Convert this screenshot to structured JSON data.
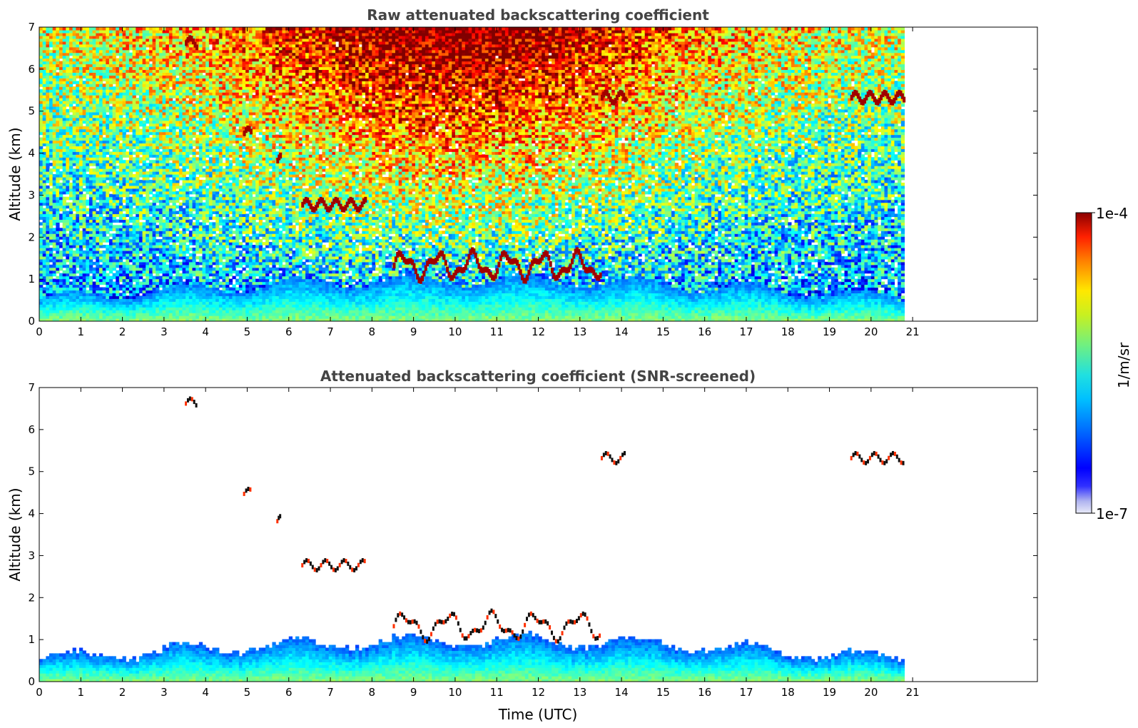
{
  "chart_data": [
    {
      "type": "heatmap",
      "title": "Raw attenuated backscattering coefficient",
      "xlabel": "",
      "ylabel": "Altitude (km)",
      "xlim": [
        0,
        24
      ],
      "ylim": [
        0,
        7
      ],
      "x_ticks": [
        "0",
        "1",
        "2",
        "3",
        "4",
        "5",
        "6",
        "7",
        "8",
        "9",
        "10",
        "11",
        "12",
        "13",
        "14",
        "15",
        "16",
        "17",
        "18",
        "19",
        "20",
        "21"
      ],
      "y_ticks": [
        "0",
        "1",
        "2",
        "3",
        "4",
        "5",
        "6",
        "7"
      ],
      "data_extent_hours": [
        0,
        20.8
      ],
      "grid": false,
      "features": [
        {
          "kind": "cloud",
          "t_start": 6.3,
          "t_end": 7.85,
          "alt": 2.75
        },
        {
          "kind": "cloud",
          "t_start": 13.5,
          "t_end": 14.1,
          "alt": 5.3
        },
        {
          "kind": "cloud",
          "t_start": 3.5,
          "t_end": 3.8,
          "alt": 6.6
        },
        {
          "kind": "cloud",
          "t_start": 5.7,
          "t_end": 5.8,
          "alt": 3.8
        },
        {
          "kind": "cloud",
          "t_start": 4.9,
          "t_end": 5.1,
          "alt": 4.45
        },
        {
          "kind": "cloud",
          "t_start": 8.5,
          "t_end": 13.5,
          "alt": 1.3
        },
        {
          "kind": "cloud",
          "t_start": 19.5,
          "t_end": 20.8,
          "alt": 5.3
        }
      ]
    },
    {
      "type": "heatmap",
      "title": "Attenuated backscattering coefficient (SNR-screened)",
      "xlabel": "Time (UTC)",
      "ylabel": "Altitude (km)",
      "xlim": [
        0,
        24
      ],
      "ylim": [
        0,
        7
      ],
      "x_ticks": [
        "0",
        "1",
        "2",
        "3",
        "4",
        "5",
        "6",
        "7",
        "8",
        "9",
        "10",
        "11",
        "12",
        "13",
        "14",
        "15",
        "16",
        "17",
        "18",
        "19",
        "20",
        "21"
      ],
      "y_ticks": [
        "0",
        "1",
        "2",
        "3",
        "4",
        "5",
        "6",
        "7"
      ],
      "data_extent_hours": [
        0,
        20.8
      ],
      "grid": false
    }
  ],
  "colorbar": {
    "label": "1/m/sr",
    "max_label": "1e-4",
    "min_label": "1e-7",
    "scale": "log",
    "range": [
      1e-07,
      0.0001
    ],
    "colormap": "jet"
  }
}
